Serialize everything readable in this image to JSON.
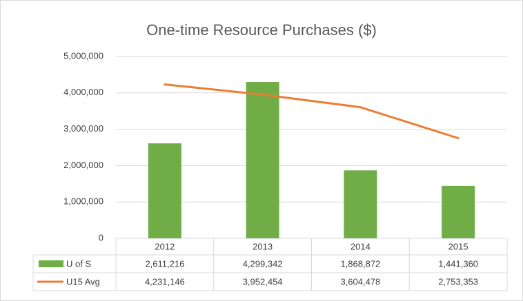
{
  "chart_data": {
    "type": "bar-line-table",
    "title": "One-time Resource Purchases ($)",
    "categories": [
      "2012",
      "2013",
      "2014",
      "2015"
    ],
    "series": [
      {
        "name": "U of S",
        "type": "bar",
        "color": "#70ad47",
        "values": [
          2611216,
          4299342,
          1868872,
          1441360
        ],
        "value_labels": [
          "2,611,216",
          "4,299,342",
          "1,868,872",
          "1,441,360"
        ]
      },
      {
        "name": "U15 Avg",
        "type": "line",
        "color": "#ed7d31",
        "values": [
          4231146,
          3952454,
          3604478,
          2753353
        ],
        "value_labels": [
          "4,231,146",
          "3,952,454",
          "3,604,478",
          "2,753,353"
        ]
      }
    ],
    "ylim": [
      0,
      5000000
    ],
    "yticks": [
      0,
      {
        "value": 1000000,
        "label": "1,000,000"
      },
      {
        "value": 2000000,
        "label": "2,000,000"
      },
      {
        "value": 3000000,
        "label": "3,000,000"
      },
      {
        "value": 4000000,
        "label": "4,000,000"
      },
      {
        "value": 5000000,
        "label": "5,000,000"
      }
    ],
    "grid": true
  }
}
